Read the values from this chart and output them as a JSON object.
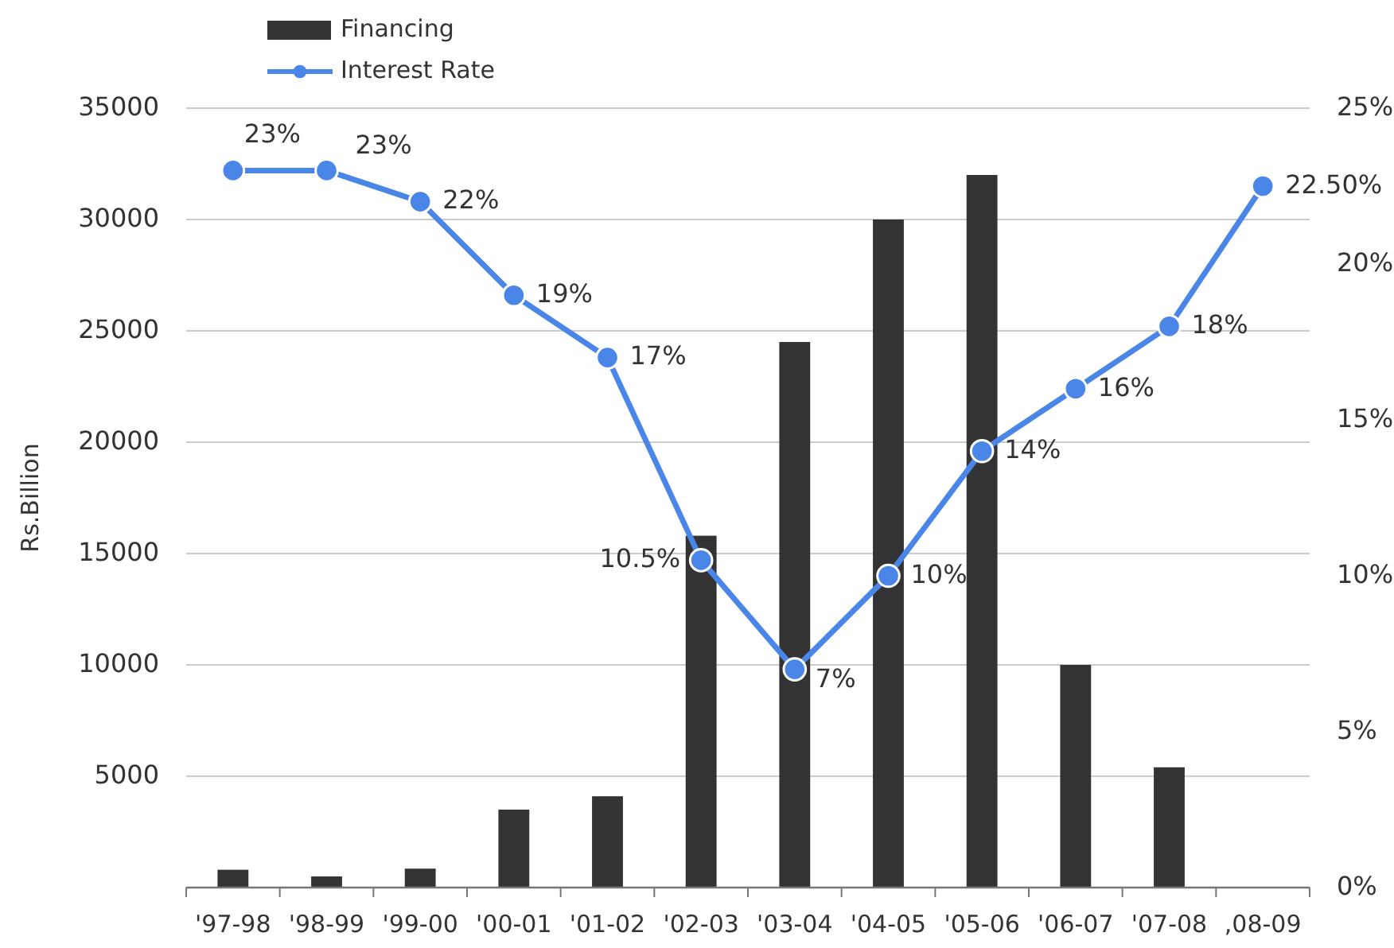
{
  "chart_data": {
    "type": "bar",
    "categories": [
      "'97-98",
      "'98-99",
      "'99-00",
      "'00-01",
      "'01-02",
      "'02-03",
      "'03-04",
      "'04-05",
      "'05-06",
      "'06-07",
      "'07-08",
      ",08-09"
    ],
    "ylabel": "Rs.Billion",
    "ylim": [
      0,
      35000
    ],
    "yticks": [
      5000,
      10000,
      15000,
      20000,
      25000,
      30000,
      35000
    ],
    "y2lim": [
      0,
      25
    ],
    "y2ticks": [
      {
        "value": 0,
        "label": "0%"
      },
      {
        "value": 5,
        "label": "5%"
      },
      {
        "value": 10,
        "label": "10%"
      },
      {
        "value": 15,
        "label": "15%"
      },
      {
        "value": 20,
        "label": "20%"
      },
      {
        "value": 25,
        "label": "25%"
      }
    ],
    "grid": "y",
    "legend": "top",
    "marker": "circle",
    "line_style": "solid",
    "series": [
      {
        "name": "Financing",
        "color": "#333333",
        "values": [
          800,
          500,
          850,
          3500,
          4100,
          15800,
          24500,
          30000,
          32000,
          10000,
          5400,
          null
        ]
      },
      {
        "name": "Interest Rate",
        "type": "line",
        "axis": "y2",
        "color": "#4a86e8",
        "values": [
          23,
          23,
          22,
          19,
          17,
          10.5,
          7,
          10,
          14,
          16,
          18,
          22.5
        ],
        "value_labels": [
          "23%",
          "23%",
          "22%",
          "19%",
          "17%",
          "10.5%",
          "7%",
          "10%",
          "14%",
          "16%",
          "18%",
          "22.50%"
        ]
      }
    ]
  }
}
